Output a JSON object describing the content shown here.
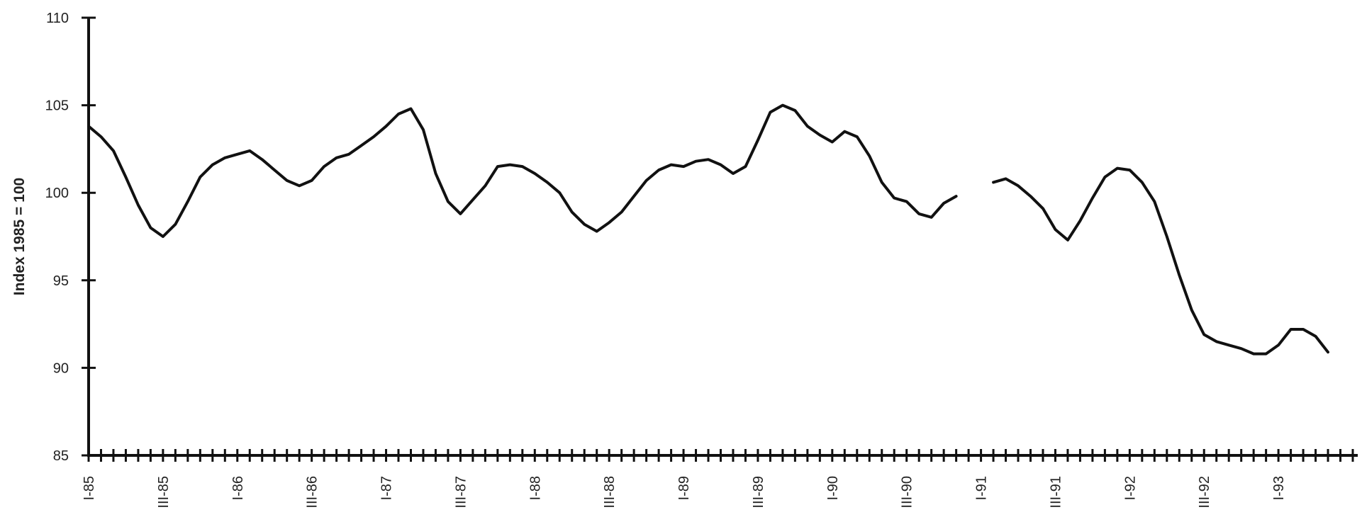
{
  "chart_data": {
    "type": "line",
    "ylabel": "Index 1985 = 100",
    "xlabel": "",
    "ylim": [
      85,
      110
    ],
    "yticks": [
      85,
      90,
      95,
      100,
      105,
      110
    ],
    "grid": false,
    "x_start": "1985-01",
    "x_end": "1993-07",
    "x_labels": [
      {
        "label": "I-85",
        "x": "1985-01"
      },
      {
        "label": "III-85",
        "x": "1985-07"
      },
      {
        "label": "I-86",
        "x": "1986-01"
      },
      {
        "label": "III-86",
        "x": "1986-07"
      },
      {
        "label": "I-87",
        "x": "1987-01"
      },
      {
        "label": "III-87",
        "x": "1987-07"
      },
      {
        "label": "I-88",
        "x": "1988-01"
      },
      {
        "label": "III-88",
        "x": "1988-07"
      },
      {
        "label": "I-89",
        "x": "1989-01"
      },
      {
        "label": "III-89",
        "x": "1989-07"
      },
      {
        "label": "I-90",
        "x": "1990-01"
      },
      {
        "label": "III-90",
        "x": "1990-07"
      },
      {
        "label": "I-91",
        "x": "1991-01"
      },
      {
        "label": "III-91",
        "x": "1991-07"
      },
      {
        "label": "I-92",
        "x": "1992-01"
      },
      {
        "label": "III-92",
        "x": "1992-07"
      },
      {
        "label": "I-93",
        "x": "1993-01"
      }
    ],
    "series": [
      {
        "points": [
          [
            "1985-01",
            103.8
          ],
          [
            "1985-02",
            103.2
          ],
          [
            "1985-03",
            102.4
          ],
          [
            "1985-04",
            100.9
          ],
          [
            "1985-05",
            99.3
          ],
          [
            "1985-06",
            98.0
          ],
          [
            "1985-07",
            97.5
          ],
          [
            "1985-08",
            98.2
          ],
          [
            "1985-09",
            99.5
          ],
          [
            "1985-10",
            100.9
          ],
          [
            "1985-11",
            101.6
          ],
          [
            "1985-12",
            102.0
          ],
          [
            "1986-01",
            102.2
          ],
          [
            "1986-02",
            102.4
          ],
          [
            "1986-03",
            101.9
          ],
          [
            "1986-04",
            101.3
          ],
          [
            "1986-05",
            100.7
          ],
          [
            "1986-06",
            100.4
          ],
          [
            "1986-07",
            100.7
          ],
          [
            "1986-08",
            101.5
          ],
          [
            "1986-09",
            102.0
          ],
          [
            "1986-10",
            102.2
          ],
          [
            "1986-11",
            102.7
          ],
          [
            "1986-12",
            103.2
          ],
          [
            "1987-01",
            103.8
          ],
          [
            "1987-02",
            104.5
          ],
          [
            "1987-03",
            104.8
          ],
          [
            "1987-04",
            103.6
          ],
          [
            "1987-05",
            101.1
          ],
          [
            "1987-06",
            99.5
          ],
          [
            "1987-07",
            98.8
          ],
          [
            "1987-08",
            99.6
          ],
          [
            "1987-09",
            100.4
          ],
          [
            "1987-10",
            101.5
          ],
          [
            "1987-11",
            101.6
          ],
          [
            "1987-12",
            101.5
          ],
          [
            "1988-01",
            101.1
          ],
          [
            "1988-02",
            100.6
          ],
          [
            "1988-03",
            100.0
          ],
          [
            "1988-04",
            98.9
          ],
          [
            "1988-05",
            98.2
          ],
          [
            "1988-06",
            97.8
          ],
          [
            "1988-07",
            98.3
          ],
          [
            "1988-08",
            98.9
          ],
          [
            "1988-09",
            99.8
          ],
          [
            "1988-10",
            100.7
          ],
          [
            "1988-11",
            101.3
          ],
          [
            "1988-12",
            101.6
          ],
          [
            "1989-01",
            101.5
          ],
          [
            "1989-02",
            101.8
          ],
          [
            "1989-03",
            101.9
          ],
          [
            "1989-04",
            101.6
          ],
          [
            "1989-05",
            101.1
          ],
          [
            "1989-06",
            101.5
          ],
          [
            "1989-07",
            103.0
          ],
          [
            "1989-08",
            104.6
          ],
          [
            "1989-09",
            105.0
          ],
          [
            "1989-10",
            104.7
          ],
          [
            "1989-11",
            103.8
          ],
          [
            "1989-12",
            103.3
          ],
          [
            "1990-01",
            102.9
          ],
          [
            "1990-02",
            103.5
          ],
          [
            "1990-03",
            103.2
          ],
          [
            "1990-04",
            102.1
          ],
          [
            "1990-05",
            100.6
          ],
          [
            "1990-06",
            99.7
          ],
          [
            "1990-07",
            99.5
          ],
          [
            "1990-08",
            98.8
          ],
          [
            "1990-09",
            98.6
          ],
          [
            "1990-10",
            99.4
          ],
          [
            "1990-11",
            99.8
          ],
          [
            "1990-12",
            null
          ],
          [
            "1991-01",
            null
          ],
          [
            "1991-02",
            100.6
          ],
          [
            "1991-03",
            100.8
          ],
          [
            "1991-04",
            100.4
          ],
          [
            "1991-05",
            99.8
          ],
          [
            "1991-06",
            99.1
          ],
          [
            "1991-07",
            97.9
          ],
          [
            "1991-08",
            97.3
          ],
          [
            "1991-09",
            98.4
          ],
          [
            "1991-10",
            99.7
          ],
          [
            "1991-11",
            100.9
          ],
          [
            "1991-12",
            101.4
          ],
          [
            "1992-01",
            101.3
          ],
          [
            "1992-02",
            100.6
          ],
          [
            "1992-03",
            99.5
          ],
          [
            "1992-04",
            97.5
          ],
          [
            "1992-05",
            95.3
          ],
          [
            "1992-06",
            93.3
          ],
          [
            "1992-07",
            91.9
          ],
          [
            "1992-08",
            91.5
          ],
          [
            "1992-09",
            91.3
          ],
          [
            "1992-10",
            91.1
          ],
          [
            "1992-11",
            90.8
          ],
          [
            "1992-12",
            90.8
          ],
          [
            "1993-01",
            91.3
          ],
          [
            "1993-02",
            92.2
          ],
          [
            "1993-03",
            92.2
          ],
          [
            "1993-04",
            91.8
          ],
          [
            "1993-05",
            90.9
          ]
        ]
      }
    ]
  }
}
